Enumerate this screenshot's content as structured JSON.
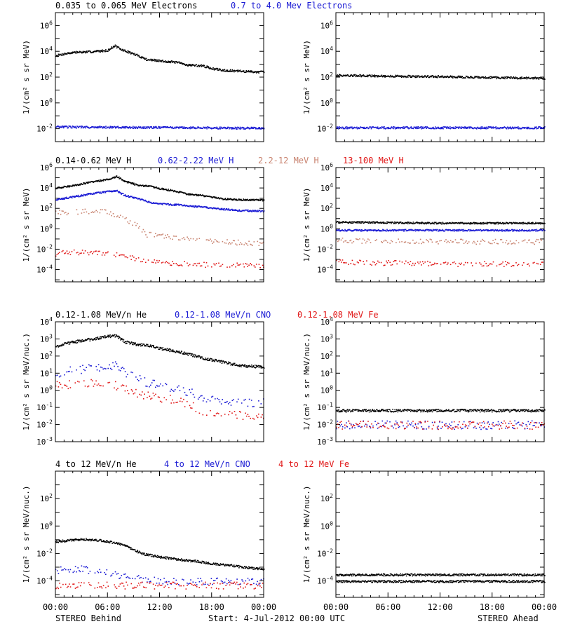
{
  "colors": {
    "black": "#000000",
    "blue": "#1a1ad4",
    "tan": "#c8826e",
    "red": "#e01515"
  },
  "footer": {
    "left_label": "STEREO Behind",
    "right_label": "STEREO Ahead",
    "start_label": "Start:  4-Jul-2012 00:00 UTC",
    "x_ticks": [
      "00:00",
      "06:00",
      "12:00",
      "18:00",
      "00:00"
    ]
  },
  "chart_data": [
    {
      "type": "scatter",
      "panel": "electrons-behind",
      "title_parts": [
        {
          "text": "0.035 to 0.065 MeV Electrons",
          "color": "black"
        },
        {
          "text": "0.7 to 4.0 Mev Electrons",
          "color": "blue"
        }
      ],
      "ylabel": "1/(cm² s sr MeV)",
      "yscale": "log",
      "ylim_log10": [
        -3,
        7
      ],
      "y_ticks": [
        {
          "label": "10^6",
          "exp": 6
        },
        {
          "label": "10^4",
          "exp": 4
        },
        {
          "label": "10^2",
          "exp": 2
        },
        {
          "label": "10^0",
          "exp": 0
        },
        {
          "label": "10^-2",
          "exp": -2
        }
      ],
      "xlim_hours": [
        0,
        24
      ],
      "series": [
        {
          "color": "black",
          "hours": [
            0,
            1,
            2,
            4,
            6,
            6.8,
            7.5,
            8.5,
            9.5,
            10.5,
            12,
            14,
            15,
            17,
            18,
            19,
            20,
            21,
            22,
            24
          ],
          "values": [
            5000,
            7000,
            9000,
            10000,
            13000,
            30000,
            15000,
            9000,
            5000,
            2500,
            2000,
            1500,
            1000,
            800,
            500,
            400,
            350,
            320,
            300,
            270
          ]
        },
        {
          "color": "blue",
          "hours": [
            0,
            24
          ],
          "values": [
            0.015,
            0.012
          ]
        }
      ]
    },
    {
      "type": "scatter",
      "panel": "electrons-ahead",
      "ylabel": "1/(cm² s sr MeV)",
      "yscale": "log",
      "ylim_log10": [
        -3,
        7
      ],
      "y_ticks": [
        {
          "label": "10^6",
          "exp": 6
        },
        {
          "label": "10^4",
          "exp": 4
        },
        {
          "label": "10^2",
          "exp": 2
        },
        {
          "label": "10^0",
          "exp": 0
        },
        {
          "label": "10^-2",
          "exp": -2
        }
      ],
      "xlim_hours": [
        0,
        24
      ],
      "series": [
        {
          "color": "black",
          "hours": [
            0,
            6,
            12,
            18,
            24
          ],
          "values": [
            150,
            130,
            120,
            100,
            90
          ]
        },
        {
          "color": "blue",
          "hours": [
            0,
            24
          ],
          "values": [
            0.013,
            0.013
          ]
        }
      ]
    },
    {
      "type": "scatter",
      "panel": "protons-behind",
      "title_parts": [
        {
          "text": "0.14-0.62 MeV H",
          "color": "black"
        },
        {
          "text": "0.62-2.22 MeV H",
          "color": "blue"
        },
        {
          "text": "2.2-12 MeV H",
          "color": "tan"
        },
        {
          "text": "13-100 MeV H",
          "color": "red"
        }
      ],
      "ylabel": "1/(cm² s sr MeV)",
      "yscale": "log",
      "ylim_log10": [
        -5.2,
        6
      ],
      "y_ticks": [
        {
          "label": "10^6",
          "exp": 6
        },
        {
          "label": "10^4",
          "exp": 4
        },
        {
          "label": "10^2",
          "exp": 2
        },
        {
          "label": "10^0",
          "exp": 0
        },
        {
          "label": "10^-2",
          "exp": -2
        },
        {
          "label": "10^-4",
          "exp": -4
        }
      ],
      "xlim_hours": [
        0,
        24
      ],
      "series": [
        {
          "color": "black",
          "hours": [
            0,
            2,
            4,
            6,
            7,
            8,
            9.5,
            11,
            12,
            14,
            15,
            17,
            19,
            21,
            24
          ],
          "values": [
            10000,
            20000,
            40000,
            80000,
            150000,
            50000,
            20000,
            15000,
            10000,
            5000,
            3000,
            2000,
            1000,
            800,
            700
          ]
        },
        {
          "color": "blue",
          "hours": [
            0,
            2,
            4,
            6,
            7,
            8,
            9.5,
            11,
            12,
            14,
            15,
            17,
            19,
            21,
            24
          ],
          "values": [
            800,
            1500,
            3000,
            5000,
            6000,
            2000,
            1000,
            400,
            300,
            250,
            200,
            150,
            100,
            70,
            60
          ]
        },
        {
          "color": "tan",
          "hours": [
            0,
            2,
            4,
            6,
            8,
            9.5,
            10.5,
            12,
            14,
            15,
            17,
            19,
            21,
            24
          ],
          "values": [
            40,
            50,
            60,
            50,
            10,
            2,
            0.3,
            0.25,
            0.15,
            0.1,
            0.08,
            0.07,
            0.05,
            0.04
          ]
        },
        {
          "color": "red",
          "hours": [
            0,
            2,
            4,
            6,
            8,
            9.5,
            11,
            13,
            15,
            18,
            21,
            24
          ],
          "values": [
            0.004,
            0.006,
            0.005,
            0.004,
            0.003,
            0.001,
            0.0007,
            0.0005,
            0.0004,
            0.0003,
            0.0003,
            0.0003
          ]
        }
      ]
    },
    {
      "type": "scatter",
      "panel": "protons-ahead",
      "ylabel": "1/(cm² s sr MeV)",
      "yscale": "log",
      "ylim_log10": [
        -5.2,
        6
      ],
      "y_ticks": [
        {
          "label": "10^6",
          "exp": 6
        },
        {
          "label": "10^4",
          "exp": 4
        },
        {
          "label": "10^2",
          "exp": 2
        },
        {
          "label": "10^0",
          "exp": 0
        },
        {
          "label": "10^-2",
          "exp": -2
        },
        {
          "label": "10^-4",
          "exp": -4
        }
      ],
      "xlim_hours": [
        0,
        24
      ],
      "series": [
        {
          "color": "black",
          "hours": [
            0,
            12,
            24
          ],
          "values": [
            5,
            4,
            4
          ]
        },
        {
          "color": "blue",
          "hours": [
            0,
            12,
            24
          ],
          "values": [
            0.8,
            0.8,
            0.8
          ]
        },
        {
          "color": "tan",
          "hours": [
            0,
            12,
            24
          ],
          "values": [
            0.08,
            0.06,
            0.06
          ]
        },
        {
          "color": "red",
          "hours": [
            0,
            12,
            24
          ],
          "values": [
            0.0006,
            0.0004,
            0.0004
          ]
        }
      ]
    },
    {
      "type": "scatter",
      "panel": "heavy-low-behind",
      "title_parts": [
        {
          "text": "0.12-1.08 MeV/n He",
          "color": "black"
        },
        {
          "text": "0.12-1.08 MeV/n CNO",
          "color": "blue"
        },
        {
          "text": "0.12-1.08 MeV Fe",
          "color": "red"
        }
      ],
      "ylabel": "1/(cm² s sr MeV/nuc.)",
      "yscale": "log",
      "ylim_log10": [
        -3,
        4
      ],
      "y_ticks": [
        {
          "label": "10^4",
          "exp": 4
        },
        {
          "label": "10^3",
          "exp": 3
        },
        {
          "label": "10^2",
          "exp": 2
        },
        {
          "label": "10^1",
          "exp": 1
        },
        {
          "label": "10^0",
          "exp": 0
        },
        {
          "label": "10^-1",
          "exp": -1
        },
        {
          "label": "10^-2",
          "exp": -2
        },
        {
          "label": "10^-3",
          "exp": -3
        }
      ],
      "xlim_hours": [
        0,
        24
      ],
      "series": [
        {
          "color": "black",
          "hours": [
            0,
            2,
            4,
            6,
            7,
            8,
            9.5,
            11,
            12,
            14,
            15,
            17,
            19,
            21,
            24
          ],
          "values": [
            400,
            700,
            1000,
            1500,
            1600,
            700,
            500,
            400,
            300,
            200,
            150,
            80,
            50,
            30,
            25
          ]
        },
        {
          "color": "blue",
          "hours": [
            0,
            2,
            4,
            6,
            7,
            8,
            9.5,
            10.5,
            12,
            13.5,
            15,
            16.5,
            18,
            21,
            24
          ],
          "values": [
            10,
            15,
            20,
            30,
            30,
            10,
            5,
            3,
            2,
            1.5,
            1,
            0.5,
            0.3,
            0.2,
            0.2
          ]
        },
        {
          "color": "red",
          "hours": [
            0,
            2,
            4,
            6,
            7,
            8.5,
            10,
            12,
            13.5,
            15,
            17,
            19,
            21,
            24
          ],
          "values": [
            2,
            2.5,
            3,
            3,
            2,
            1,
            0.6,
            0.4,
            0.3,
            0.2,
            0.06,
            0.05,
            0.04,
            0.03
          ]
        }
      ]
    },
    {
      "type": "scatter",
      "panel": "heavy-low-ahead",
      "ylabel": "1/(cm² s sr MeV/nuc.)",
      "yscale": "log",
      "ylim_log10": [
        -3,
        4
      ],
      "y_ticks": [
        {
          "label": "10^4",
          "exp": 4
        },
        {
          "label": "10^3",
          "exp": 3
        },
        {
          "label": "10^2",
          "exp": 2
        },
        {
          "label": "10^1",
          "exp": 1
        },
        {
          "label": "10^0",
          "exp": 0
        },
        {
          "label": "10^-1",
          "exp": -1
        },
        {
          "label": "10^-2",
          "exp": -2
        },
        {
          "label": "10^-3",
          "exp": -3
        }
      ],
      "xlim_hours": [
        0,
        24
      ],
      "series": [
        {
          "color": "black",
          "hours": [
            0,
            24
          ],
          "values": [
            0.07,
            0.07
          ]
        },
        {
          "color": "blue",
          "hours": [
            0,
            24
          ],
          "values": [
            0.01,
            0.01
          ]
        },
        {
          "color": "red",
          "hours": [
            0,
            24
          ],
          "values": [
            0.01,
            0.01
          ]
        }
      ]
    },
    {
      "type": "scatter",
      "panel": "heavy-high-behind",
      "title_parts": [
        {
          "text": "4 to 12 MeV/n He",
          "color": "black"
        },
        {
          "text": "4 to 12 MeV/n CNO",
          "color": "blue"
        },
        {
          "text": "4 to 12 MeV Fe",
          "color": "red"
        }
      ],
      "ylabel": "1/(cm² s sr MeV/nuc.)",
      "yscale": "log",
      "ylim_log10": [
        -5.2,
        4
      ],
      "y_ticks": [
        {
          "label": "10^2",
          "exp": 2
        },
        {
          "label": "10^0",
          "exp": 0
        },
        {
          "label": "10^-2",
          "exp": -2
        },
        {
          "label": "10^-4",
          "exp": -4
        }
      ],
      "xlim_hours": [
        0,
        24
      ],
      "series": [
        {
          "color": "black",
          "hours": [
            0,
            2,
            3,
            5,
            6,
            7,
            8,
            9,
            10,
            12,
            14,
            16,
            18,
            20,
            22,
            24
          ],
          "values": [
            0.08,
            0.1,
            0.12,
            0.1,
            0.08,
            0.06,
            0.04,
            0.02,
            0.01,
            0.006,
            0.004,
            0.003,
            0.002,
            0.0015,
            0.001,
            0.0008
          ]
        },
        {
          "color": "blue",
          "hours": [
            0,
            1,
            3,
            5,
            7,
            8.5,
            10,
            12,
            15,
            18,
            21,
            24
          ],
          "values": [
            0.0005,
            0.0008,
            0.0008,
            0.0005,
            0.0003,
            0.0002,
            0.00015,
            0.0001,
            0.0001,
            0.0001,
            0.0001,
            0.0001
          ]
        },
        {
          "color": "red",
          "hours": [
            0,
            24
          ],
          "values": [
            5e-05,
            5e-05
          ]
        }
      ]
    },
    {
      "type": "scatter",
      "panel": "heavy-high-ahead",
      "ylabel": "1/(cm² s sr MeV/nuc.)",
      "yscale": "log",
      "ylim_log10": [
        -5.2,
        4
      ],
      "y_ticks": [
        {
          "label": "10^2",
          "exp": 2
        },
        {
          "label": "10^0",
          "exp": 0
        },
        {
          "label": "10^-2",
          "exp": -2
        },
        {
          "label": "10^-4",
          "exp": -4
        }
      ],
      "xlim_hours": [
        0,
        24
      ],
      "series": [
        {
          "color": "black",
          "hours": [
            0,
            24
          ],
          "values": [
            0.0003,
            0.0003
          ]
        },
        {
          "color": "black",
          "hours": [
            0,
            24
          ],
          "values": [
            0.0001,
            0.0001
          ]
        }
      ]
    }
  ]
}
